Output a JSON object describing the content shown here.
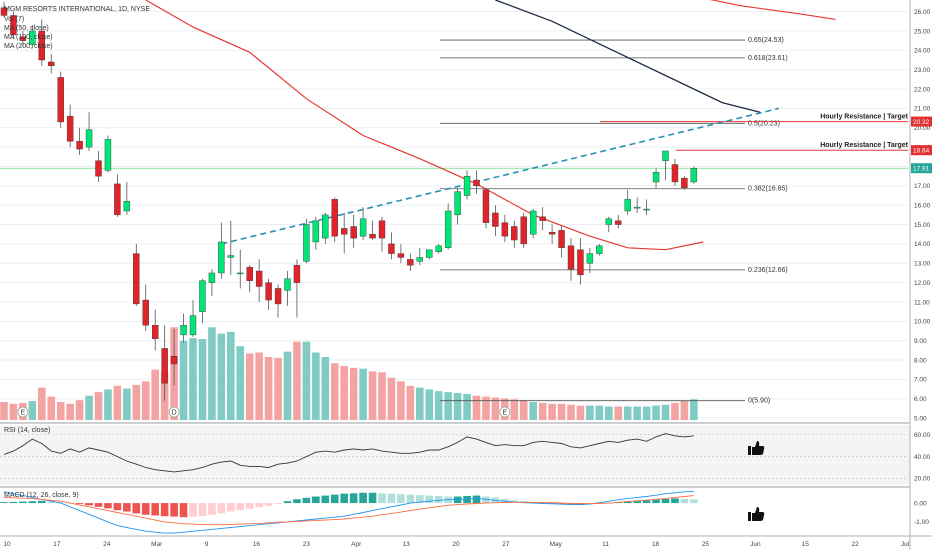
{
  "chart_data": {
    "type": "candlestick",
    "title": "MGM RESORTS INTERNATIONAL, 1D, NYSE",
    "indicators_legend": [
      "Vol (7)",
      "MA (50, close)",
      "MA (100, close)",
      "MA (200, close)"
    ],
    "price_axis": {
      "ylim": [
        4.8,
        26.6
      ],
      "ticks": [
        "26.00",
        "25.00",
        "24.00",
        "23.00",
        "22.00",
        "21.00",
        "20.00",
        "19.00",
        "18.00",
        "17.00",
        "16.00",
        "15.00",
        "14.00",
        "13.00",
        "12.00",
        "11.00",
        "10.00",
        "9.00",
        "8.00",
        "7.00",
        "6.00",
        "5.00"
      ],
      "tick_values": [
        26,
        25,
        24,
        23,
        22,
        21,
        20,
        19,
        18,
        17,
        16,
        15,
        14,
        13,
        12,
        11,
        10,
        9,
        8,
        7,
        6,
        5
      ],
      "tags": [
        {
          "text": "20.32",
          "value": 20.32,
          "color": "#e03030"
        },
        {
          "text": "18.84",
          "value": 18.84,
          "color": "#e03030"
        },
        {
          "text": "17.91",
          "value": 17.91,
          "color": "#26a69a"
        }
      ]
    },
    "time_axis": {
      "labels": [
        "10",
        "17",
        "24",
        "Mar",
        "9",
        "16",
        "23",
        "Apr",
        "13",
        "20",
        "27",
        "May",
        "11",
        "18",
        "25",
        "Jun",
        "15",
        "22",
        "Jul"
      ]
    },
    "candles": [
      {
        "o": 26.2,
        "h": 26.5,
        "c": 25.8,
        "l": 25.7
      },
      {
        "o": 25.8,
        "h": 26.0,
        "c": 24.8,
        "l": 24.6
      },
      {
        "o": 24.7,
        "h": 25.0,
        "c": 24.5,
        "l": 24.2
      },
      {
        "o": 24.3,
        "h": 25.3,
        "c": 25.0,
        "l": 24.1
      },
      {
        "o": 25.0,
        "h": 25.6,
        "c": 23.5,
        "l": 23.2
      },
      {
        "o": 23.4,
        "h": 23.8,
        "c": 23.2,
        "l": 22.8
      },
      {
        "o": 22.6,
        "h": 22.9,
        "c": 20.3,
        "l": 20.0
      },
      {
        "o": 20.6,
        "h": 21.2,
        "c": 19.3,
        "l": 19.0
      },
      {
        "o": 19.3,
        "h": 20.0,
        "c": 18.9,
        "l": 18.6
      },
      {
        "o": 19.0,
        "h": 20.8,
        "c": 19.9,
        "l": 18.8
      },
      {
        "o": 18.3,
        "h": 18.8,
        "c": 17.5,
        "l": 17.2
      },
      {
        "o": 17.8,
        "h": 19.6,
        "c": 19.4,
        "l": 17.7
      },
      {
        "o": 17.1,
        "h": 17.6,
        "c": 15.5,
        "l": 15.4
      },
      {
        "o": 15.7,
        "h": 17.2,
        "c": 16.2,
        "l": 15.5
      },
      {
        "o": 13.5,
        "h": 14.0,
        "c": 10.9,
        "l": 10.8
      },
      {
        "o": 11.1,
        "h": 11.9,
        "c": 9.8,
        "l": 9.5
      },
      {
        "o": 9.8,
        "h": 10.6,
        "c": 9.1,
        "l": 8.5
      },
      {
        "o": 8.6,
        "h": 9.8,
        "c": 6.8,
        "l": 5.9
      },
      {
        "o": 8.2,
        "h": 9.6,
        "c": 7.8,
        "l": 6.7
      },
      {
        "o": 9.3,
        "h": 10.4,
        "c": 9.8,
        "l": 8.9
      },
      {
        "o": 9.3,
        "h": 11.1,
        "c": 10.3,
        "l": 9.2
      },
      {
        "o": 10.5,
        "h": 12.2,
        "c": 12.1,
        "l": 9.9
      },
      {
        "o": 12.0,
        "h": 12.7,
        "c": 12.5,
        "l": 11.3
      },
      {
        "o": 12.5,
        "h": 15.1,
        "c": 14.1,
        "l": 12.2
      },
      {
        "o": 13.3,
        "h": 15.2,
        "c": 13.4,
        "l": 12.4
      },
      {
        "o": 12.5,
        "h": 13.7,
        "c": 12.5,
        "l": 11.7
      },
      {
        "o": 12.8,
        "h": 12.9,
        "c": 12.1,
        "l": 11.5
      },
      {
        "o": 12.6,
        "h": 13.2,
        "c": 11.8,
        "l": 11.0
      },
      {
        "o": 12.0,
        "h": 12.2,
        "c": 11.1,
        "l": 10.6
      },
      {
        "o": 11.7,
        "h": 11.9,
        "c": 10.9,
        "l": 10.2
      },
      {
        "o": 11.6,
        "h": 12.6,
        "c": 12.2,
        "l": 10.8
      },
      {
        "o": 12.9,
        "h": 13.2,
        "c": 12.0,
        "l": 10.2
      },
      {
        "o": 13.1,
        "h": 15.3,
        "c": 15.0,
        "l": 13.0
      },
      {
        "o": 14.1,
        "h": 15.4,
        "c": 15.2,
        "l": 13.7
      },
      {
        "o": 14.3,
        "h": 15.6,
        "c": 15.5,
        "l": 14.0
      },
      {
        "o": 16.3,
        "h": 16.4,
        "c": 14.4,
        "l": 14.1
      },
      {
        "o": 14.8,
        "h": 15.6,
        "c": 14.5,
        "l": 13.5
      },
      {
        "o": 14.9,
        "h": 15.5,
        "c": 14.3,
        "l": 13.8
      },
      {
        "o": 14.4,
        "h": 15.9,
        "c": 15.3,
        "l": 14.2
      },
      {
        "o": 14.5,
        "h": 15.2,
        "c": 14.3,
        "l": 14.2
      },
      {
        "o": 15.2,
        "h": 15.4,
        "c": 14.3,
        "l": 13.6
      },
      {
        "o": 14.0,
        "h": 14.6,
        "c": 13.5,
        "l": 13.2
      },
      {
        "o": 13.5,
        "h": 14.0,
        "c": 13.3,
        "l": 13.0
      },
      {
        "o": 13.2,
        "h": 13.5,
        "c": 12.9,
        "l": 12.6
      },
      {
        "o": 13.1,
        "h": 13.8,
        "c": 13.3,
        "l": 12.9
      },
      {
        "o": 13.3,
        "h": 13.7,
        "c": 13.7,
        "l": 13.2
      },
      {
        "o": 13.6,
        "h": 14.0,
        "c": 13.9,
        "l": 13.5
      },
      {
        "o": 13.8,
        "h": 16.1,
        "c": 15.7,
        "l": 13.7
      },
      {
        "o": 15.5,
        "h": 16.9,
        "c": 16.7,
        "l": 15.0
      },
      {
        "o": 16.5,
        "h": 17.8,
        "c": 17.5,
        "l": 16.3
      },
      {
        "o": 17.3,
        "h": 17.8,
        "c": 17.0,
        "l": 16.6
      },
      {
        "o": 16.8,
        "h": 16.9,
        "c": 15.1,
        "l": 14.8
      },
      {
        "o": 15.6,
        "h": 16.0,
        "c": 14.9,
        "l": 14.4
      },
      {
        "o": 15.1,
        "h": 15.5,
        "c": 14.4,
        "l": 14.1
      },
      {
        "o": 14.9,
        "h": 15.2,
        "c": 14.2,
        "l": 13.8
      },
      {
        "o": 15.4,
        "h": 15.6,
        "c": 14.0,
        "l": 13.8
      },
      {
        "o": 14.5,
        "h": 15.8,
        "c": 15.7,
        "l": 14.3
      },
      {
        "o": 15.4,
        "h": 15.9,
        "c": 15.2,
        "l": 14.7
      },
      {
        "o": 14.6,
        "h": 15.0,
        "c": 14.5,
        "l": 14.0
      },
      {
        "o": 14.7,
        "h": 14.9,
        "c": 13.8,
        "l": 13.3
      },
      {
        "o": 13.9,
        "h": 14.3,
        "c": 12.7,
        "l": 12.1
      },
      {
        "o": 13.7,
        "h": 14.3,
        "c": 12.4,
        "l": 11.9
      },
      {
        "o": 13.0,
        "h": 13.8,
        "c": 13.5,
        "l": 12.5
      },
      {
        "o": 13.5,
        "h": 14.0,
        "c": 13.9,
        "l": 13.4
      },
      {
        "o": 15.0,
        "h": 15.4,
        "c": 15.3,
        "l": 14.6
      },
      {
        "o": 15.2,
        "h": 15.5,
        "c": 15.0,
        "l": 14.8
      },
      {
        "o": 15.7,
        "h": 16.8,
        "c": 16.3,
        "l": 15.5
      },
      {
        "o": 15.9,
        "h": 16.4,
        "c": 15.9,
        "l": 15.6
      },
      {
        "o": 15.8,
        "h": 16.3,
        "c": 15.8,
        "l": 15.5
      },
      {
        "o": 17.2,
        "h": 17.9,
        "c": 17.7,
        "l": 16.9
      },
      {
        "o": 18.3,
        "h": 18.8,
        "c": 18.8,
        "l": 17.3
      },
      {
        "o": 18.1,
        "h": 18.4,
        "c": 17.2,
        "l": 17.0
      },
      {
        "o": 17.4,
        "h": 17.5,
        "c": 16.9,
        "l": 16.8
      },
      {
        "o": 17.2,
        "h": 18.0,
        "c": 17.9,
        "l": 17.1
      }
    ],
    "volume": [
      0.2,
      0.18,
      0.19,
      0.21,
      0.36,
      0.26,
      0.2,
      0.18,
      0.22,
      0.27,
      0.31,
      0.34,
      0.38,
      0.35,
      0.39,
      0.43,
      0.56,
      0.53,
      1.03,
      0.88,
      0.91,
      0.9,
      1.03,
      0.96,
      0.98,
      0.82,
      0.74,
      0.75,
      0.7,
      0.69,
      0.76,
      0.87,
      0.87,
      0.75,
      0.7,
      0.63,
      0.6,
      0.58,
      0.57,
      0.54,
      0.53,
      0.47,
      0.43,
      0.38,
      0.36,
      0.34,
      0.32,
      0.31,
      0.3,
      0.29,
      0.27,
      0.26,
      0.25,
      0.24,
      0.23,
      0.22,
      0.2,
      0.19,
      0.18,
      0.18,
      0.17,
      0.16,
      0.16,
      0.16,
      0.15,
      0.15,
      0.15,
      0.15,
      0.15,
      0.16,
      0.17,
      0.19,
      0.21,
      0.23
    ],
    "volume_axis_note": "",
    "fib_levels": [
      {
        "label": "0.65(24.53)",
        "value": 24.53
      },
      {
        "label": "0.618(23.61)",
        "value": 23.61
      },
      {
        "label": "0.5(20.23)",
        "value": 20.23
      },
      {
        "label": "0.382(16.85)",
        "value": 16.85
      },
      {
        "label": "0.236(12.66)",
        "value": 12.66
      },
      {
        "label": "0(5.90)",
        "value": 5.9
      }
    ],
    "resistance": [
      {
        "label": "Hourly Resistance | Target",
        "value": 20.32
      },
      {
        "label": "Hourly Resistance | Target",
        "value": 18.84
      }
    ],
    "ma_red": [
      {
        "i": 15,
        "v": 26.6
      },
      {
        "i": 20,
        "v": 25.2
      },
      {
        "i": 26,
        "v": 23.9
      },
      {
        "i": 32,
        "v": 21.5
      },
      {
        "i": 38,
        "v": 19.6
      },
      {
        "i": 44,
        "v": 18.4
      },
      {
        "i": 50,
        "v": 17.1
      },
      {
        "i": 56,
        "v": 15.5
      },
      {
        "i": 62,
        "v": 14.4
      },
      {
        "i": 66,
        "v": 13.8
      },
      {
        "i": 70,
        "v": 13.7
      },
      {
        "i": 74,
        "v": 14.1
      }
    ],
    "ma_navy": [
      {
        "i": 52,
        "v": 26.6
      },
      {
        "i": 58,
        "v": 25.5
      },
      {
        "i": 64,
        "v": 24.1
      },
      {
        "i": 70,
        "v": 22.7
      },
      {
        "i": 76,
        "v": 21.3
      },
      {
        "i": 80,
        "v": 20.8
      }
    ],
    "ma_red_top": [
      {
        "i": 74,
        "v": 26.7
      },
      {
        "i": 78,
        "v": 26.3
      },
      {
        "i": 84,
        "v": 25.9
      },
      {
        "i": 88,
        "v": 25.6
      }
    ],
    "trendline": [
      {
        "i": 23,
        "v": 14.0
      },
      {
        "i": 82,
        "v": 21.0
      }
    ],
    "horizontal_marker": {
      "value": 17.91,
      "color": "#26a69a"
    },
    "earnings_markers": [
      {
        "i": 2,
        "text": "E"
      },
      {
        "i": 18,
        "text": "D"
      },
      {
        "i": 53,
        "text": "E"
      }
    ],
    "rsi": {
      "label": "RSI (14, close)",
      "ticks": [
        "60.00",
        "40.00",
        "20.00"
      ],
      "tick_values": [
        60,
        40,
        20
      ],
      "ylim": [
        14,
        68
      ],
      "values": [
        42,
        45,
        50,
        56,
        52,
        45,
        43,
        47,
        44,
        48,
        46,
        44,
        40,
        36,
        33,
        30,
        28,
        27,
        26,
        27,
        28,
        30,
        33,
        35,
        36,
        32,
        31,
        31,
        30,
        33,
        34,
        36,
        40,
        44,
        45,
        44,
        46,
        47,
        46,
        47,
        45,
        44,
        43,
        43,
        44,
        46,
        46,
        49,
        53,
        58,
        56,
        53,
        50,
        51,
        50,
        50,
        53,
        54,
        53,
        52,
        49,
        48,
        50,
        52,
        54,
        53,
        55,
        56,
        54,
        58,
        61,
        59,
        58,
        59
      ]
    },
    "macd": {
      "label": "MACD (12, 26, close, 9)",
      "ticks": [
        "0.00",
        "-1.00"
      ],
      "tick_values": [
        0,
        -1
      ],
      "ylim": [
        -1.7,
        0.75
      ],
      "hist": [
        0.05,
        0.06,
        0.08,
        0.1,
        0.12,
        0.08,
        0.05,
        0.02,
        -0.05,
        -0.12,
        -0.2,
        -0.28,
        -0.38,
        -0.45,
        -0.55,
        -0.62,
        -0.66,
        -0.7,
        -0.72,
        -0.75,
        -0.72,
        -0.7,
        -0.62,
        -0.55,
        -0.45,
        -0.38,
        -0.3,
        -0.22,
        -0.15,
        -0.05,
        0.1,
        0.2,
        0.28,
        0.35,
        0.4,
        0.45,
        0.5,
        0.52,
        0.55,
        0.55,
        0.52,
        0.5,
        0.48,
        0.45,
        0.42,
        0.4,
        0.38,
        0.35,
        0.35,
        0.38,
        0.4,
        0.35,
        0.3,
        0.22,
        0.15,
        0.1,
        0.05,
        0.02,
        -0.02,
        -0.05,
        -0.08,
        -0.1,
        -0.08,
        -0.05,
        0.02,
        0.05,
        0.1,
        0.12,
        0.15,
        0.18,
        0.22,
        0.25,
        0.22,
        0.2
      ],
      "macd_line": [
        0.6,
        0.5,
        0.4,
        0.3,
        0.2,
        0.1,
        0.0,
        -0.2,
        -0.4,
        -0.6,
        -0.8,
        -1.0,
        -1.2,
        -1.3,
        -1.4,
        -1.5,
        -1.55,
        -1.6,
        -1.6,
        -1.55,
        -1.5,
        -1.45,
        -1.4,
        -1.35,
        -1.3,
        -1.25,
        -1.2,
        -1.15,
        -1.1,
        -1.05,
        -1.0,
        -0.95,
        -0.9,
        -0.85,
        -0.8,
        -0.75,
        -0.7,
        -0.6,
        -0.5,
        -0.4,
        -0.3,
        -0.2,
        -0.1,
        0.0,
        0.05,
        0.1,
        0.15,
        0.18,
        0.2,
        0.22,
        0.25,
        0.2,
        0.15,
        0.1,
        0.05,
        0.02,
        0.0,
        -0.02,
        -0.04,
        -0.06,
        -0.08,
        -0.08,
        -0.05,
        0.02,
        0.1,
        0.18,
        0.25,
        0.3,
        0.35,
        0.42,
        0.5,
        0.55,
        0.6,
        0.62
      ],
      "signal_line": [
        0.3,
        0.28,
        0.26,
        0.24,
        0.2,
        0.15,
        0.1,
        0.0,
        -0.1,
        -0.2,
        -0.3,
        -0.4,
        -0.5,
        -0.6,
        -0.7,
        -0.8,
        -0.9,
        -1.0,
        -1.05,
        -1.1,
        -1.12,
        -1.14,
        -1.15,
        -1.15,
        -1.14,
        -1.12,
        -1.1,
        -1.08,
        -1.05,
        -1.02,
        -1.0,
        -0.98,
        -0.95,
        -0.92,
        -0.9,
        -0.88,
        -0.85,
        -0.8,
        -0.75,
        -0.7,
        -0.62,
        -0.55,
        -0.48,
        -0.4,
        -0.32,
        -0.25,
        -0.18,
        -0.12,
        -0.08,
        -0.05,
        -0.02,
        0.0,
        0.02,
        0.03,
        0.04,
        0.04,
        0.04,
        0.03,
        0.02,
        0.0,
        -0.02,
        -0.03,
        -0.03,
        -0.02,
        0.0,
        0.04,
        0.08,
        0.12,
        0.16,
        0.2,
        0.25,
        0.3,
        0.35,
        0.4
      ]
    },
    "colors": {
      "up": "#26a69a",
      "down": "#ef5350",
      "up_bright": "#00e676",
      "down_bright": "#e0242a",
      "vol_up": "#80cbc4",
      "vol_down": "#f4a3a3",
      "ma_red": "#e53935",
      "ma_navy": "#1e2a44",
      "trend": "#2a8fb5",
      "fib": "#555555",
      "macd": "#2196f3",
      "signal": "#ff7043",
      "grid": "#eceff1"
    }
  }
}
